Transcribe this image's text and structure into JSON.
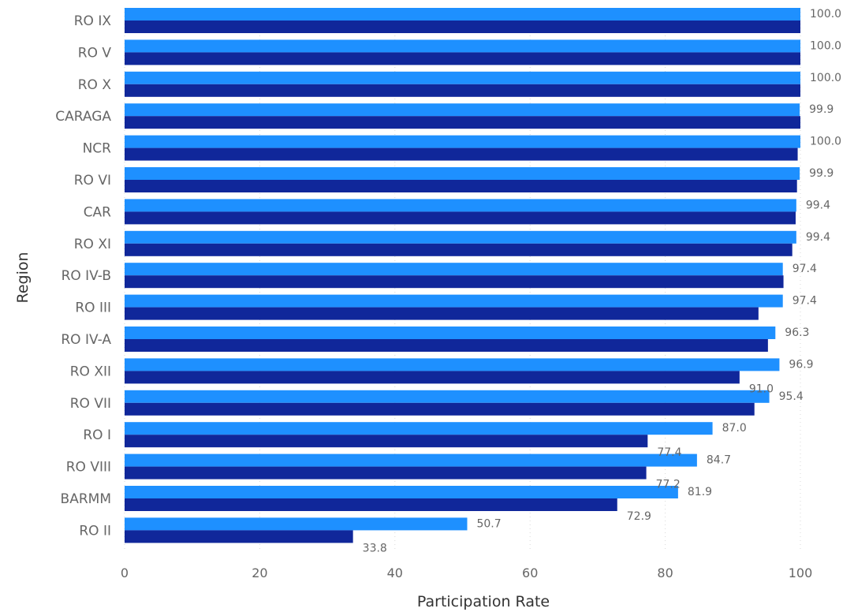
{
  "chart_data": {
    "type": "bar",
    "orientation": "horizontal",
    "xlabel": "Participation Rate",
    "ylabel": "Region",
    "xlim": [
      0,
      100
    ],
    "xticks": [
      0,
      20,
      40,
      60,
      80,
      100
    ],
    "grid": true,
    "categories": [
      "RO IX",
      "RO V",
      "RO X",
      "CARAGA",
      "NCR",
      "RO VI",
      "CAR",
      "RO XI",
      "RO IV-B",
      "RO III",
      "RO IV-A",
      "RO XII",
      "RO VII",
      "RO I",
      "RO VIII",
      "BARMM",
      "RO II"
    ],
    "series": [
      {
        "color": "#1e90ff",
        "values": [
          100.0,
          100.0,
          100.0,
          99.9,
          100.0,
          99.9,
          99.4,
          99.4,
          97.4,
          97.4,
          96.3,
          96.9,
          95.4,
          87.0,
          84.7,
          81.9,
          50.7
        ],
        "labels": [
          "100.0",
          "100.0",
          "100.0",
          "99.9",
          "100.0",
          "99.9",
          "99.4",
          "99.4",
          "97.4",
          "97.4",
          "96.3",
          "96.9",
          "95.4",
          "87.0",
          "84.7",
          "81.9",
          "50.7"
        ]
      },
      {
        "color": "#10279a",
        "values": [
          100.0,
          100.0,
          100.0,
          100.0,
          99.6,
          99.5,
          99.3,
          98.8,
          97.5,
          93.8,
          95.2,
          91.0,
          93.2,
          77.4,
          77.2,
          72.9,
          33.8
        ],
        "labels": [
          "",
          "",
          "",
          "",
          "",
          "",
          "",
          "",
          "",
          "",
          "",
          "91.0",
          "",
          "77.4",
          "77.2",
          "72.9",
          "33.8"
        ]
      }
    ]
  }
}
